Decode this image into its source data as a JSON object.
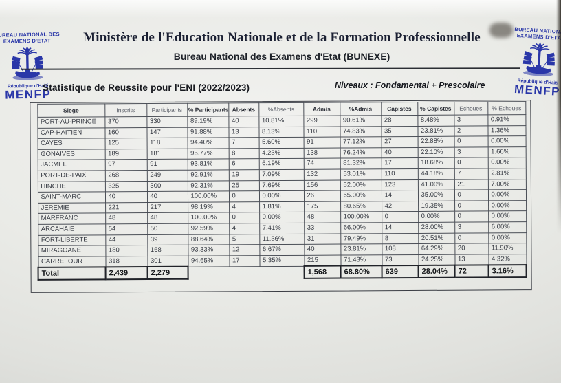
{
  "branding": {
    "left_logo": {
      "line1": "BUREAU NATIONAL  DES",
      "line2": "EXAMENS D'ETAT",
      "country": "République d'Haïti",
      "acronym": "MENFP"
    },
    "right_logo": {
      "line1": "BUREAU NATIONAL",
      "line2": "EXAMENS D'ETAT",
      "country": "République d'Haïti",
      "acronym": "MENFP"
    }
  },
  "header": {
    "ministry": "Ministère de l'Education Nationale et de la Formation Professionnelle",
    "bureau": "Bureau National des Examens d'Etat (BUNEXE)"
  },
  "subheader": {
    "title": "Statistique de Reussite pour l'ENI  (2022/2023)",
    "levels": "Niveaux : Fondamental + Prescolaire"
  },
  "table": {
    "columns": [
      "Siege",
      "Inscrits",
      "Participants",
      "% Participants",
      "Absents",
      "%Absents",
      "Admis",
      "%Admis",
      "Capistes",
      "% Capistes",
      "Echoues",
      "% Echoues"
    ],
    "faint_columns": [
      1,
      2,
      5,
      10,
      11
    ],
    "rows": [
      [
        "PORT-AU-PRINCE",
        "370",
        "330",
        "89.19%",
        "40",
        "10.81%",
        "299",
        "90.61%",
        "28",
        "8.48%",
        "3",
        "0.91%"
      ],
      [
        "CAP-HAITIEN",
        "160",
        "147",
        "91.88%",
        "13",
        "8.13%",
        "110",
        "74.83%",
        "35",
        "23.81%",
        "2",
        "1.36%"
      ],
      [
        "CAYES",
        "125",
        "118",
        "94.40%",
        "7",
        "5.60%",
        "91",
        "77.12%",
        "27",
        "22.88%",
        "0",
        "0.00%"
      ],
      [
        "GONAIVES",
        "189",
        "181",
        "95.77%",
        "8",
        "4.23%",
        "138",
        "76.24%",
        "40",
        "22.10%",
        "3",
        "1.66%"
      ],
      [
        "JACMEL",
        "97",
        "91",
        "93.81%",
        "6",
        "6.19%",
        "74",
        "81.32%",
        "17",
        "18.68%",
        "0",
        "0.00%"
      ],
      [
        "PORT-DE-PAIX",
        "268",
        "249",
        "92.91%",
        "19",
        "7.09%",
        "132",
        "53.01%",
        "110",
        "44.18%",
        "7",
        "2.81%"
      ],
      [
        "HINCHE",
        "325",
        "300",
        "92.31%",
        "25",
        "7.69%",
        "156",
        "52.00%",
        "123",
        "41.00%",
        "21",
        "7.00%"
      ],
      [
        "SAINT-MARC",
        "40",
        "40",
        "100.00%",
        "0",
        "0.00%",
        "26",
        "65.00%",
        "14",
        "35.00%",
        "0",
        "0.00%"
      ],
      [
        "JEREMIE",
        "221",
        "217",
        "98.19%",
        "4",
        "1.81%",
        "175",
        "80.65%",
        "42",
        "19.35%",
        "0",
        "0.00%"
      ],
      [
        "MARFRANC",
        "48",
        "48",
        "100.00%",
        "0",
        "0.00%",
        "48",
        "100.00%",
        "0",
        "0.00%",
        "0",
        "0.00%"
      ],
      [
        "ARCAHAIE",
        "54",
        "50",
        "92.59%",
        "4",
        "7.41%",
        "33",
        "66.00%",
        "14",
        "28.00%",
        "3",
        "6.00%"
      ],
      [
        "FORT-LIBERTE",
        "44",
        "39",
        "88.64%",
        "5",
        "11.36%",
        "31",
        "79.49%",
        "8",
        "20.51%",
        "0",
        "0.00%"
      ],
      [
        "MIRAGOANE",
        "180",
        "168",
        "93.33%",
        "12",
        "6.67%",
        "40",
        "23.81%",
        "108",
        "64.29%",
        "20",
        "11.90%"
      ],
      [
        "CARREFOUR",
        "318",
        "301",
        "94.65%",
        "17",
        "5.35%",
        "215",
        "71.43%",
        "73",
        "24.25%",
        "13",
        "4.32%"
      ]
    ],
    "total_row": [
      "Total",
      "2,439",
      "2,279",
      "",
      "",
      "",
      "1,568",
      "68.80%",
      "639",
      "28.04%",
      "72",
      "3.16%"
    ]
  },
  "colors": {
    "logo_blue": "#2a37a8",
    "ink": "#23262e",
    "paper": "#eaebe7"
  }
}
